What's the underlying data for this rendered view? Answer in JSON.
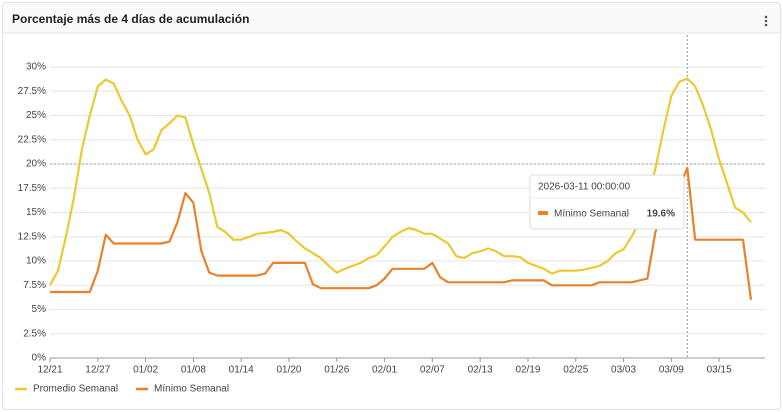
{
  "chart_data": {
    "type": "line",
    "title": "Porcentaje más de 4 días de acumulación",
    "categories": [
      "12/21",
      null,
      null,
      null,
      null,
      null,
      "12/27",
      null,
      null,
      null,
      null,
      null,
      "01/02",
      null,
      null,
      null,
      null,
      null,
      "01/08",
      null,
      null,
      null,
      null,
      null,
      "01/14",
      null,
      null,
      null,
      null,
      null,
      "01/20",
      null,
      null,
      null,
      null,
      null,
      "01/26",
      null,
      null,
      null,
      null,
      null,
      "02/01",
      null,
      null,
      null,
      null,
      null,
      "02/07",
      null,
      null,
      null,
      null,
      null,
      "02/13",
      null,
      null,
      null,
      null,
      null,
      "02/19",
      null,
      null,
      null,
      null,
      null,
      "02/25",
      null,
      null,
      null,
      null,
      null,
      "03/03",
      null,
      null,
      null,
      null,
      null,
      "03/09",
      null,
      null,
      null,
      null,
      null,
      "03/15",
      null,
      null,
      null,
      null
    ],
    "series": [
      {
        "name": "Promedio Semanal",
        "color": "#ecc931",
        "values": [
          7.5,
          9,
          12.5,
          16.5,
          21.5,
          25,
          28,
          28.7,
          28.3,
          26.5,
          25,
          22.5,
          21,
          21.5,
          23.5,
          24.2,
          25,
          24.8,
          22,
          19.5,
          17,
          13.5,
          13,
          12.2,
          12.2,
          12.5,
          12.8,
          12.9,
          13,
          13.2,
          12.8,
          12,
          11.3,
          10.8,
          10.3,
          9.5,
          8.8,
          9.2,
          9.5,
          9.8,
          10.3,
          10.6,
          11.5,
          12.5,
          13,
          13.4,
          13.2,
          12.8,
          12.8,
          12.3,
          11.8,
          10.5,
          10.3,
          10.8,
          11,
          11.3,
          11,
          10.5,
          10.5,
          10.4,
          9.8,
          9.5,
          9.2,
          8.7,
          9,
          9,
          9,
          9.1,
          9.3,
          9.5,
          10,
          10.8,
          11.2,
          12.5,
          14,
          16.5,
          19.5,
          23.5,
          27,
          28.5,
          28.8,
          28,
          26,
          23.5,
          20.5,
          18,
          15.5,
          15,
          14
        ]
      },
      {
        "name": "Mínimo Semanal",
        "color": "#e8822a",
        "values": [
          6.8,
          6.8,
          6.8,
          6.8,
          6.8,
          6.8,
          9,
          12.7,
          11.8,
          11.8,
          11.8,
          11.8,
          11.8,
          11.8,
          11.8,
          12,
          14,
          17,
          16,
          11,
          8.8,
          8.5,
          8.5,
          8.5,
          8.5,
          8.5,
          8.5,
          8.7,
          9.8,
          9.8,
          9.8,
          9.8,
          9.8,
          7.6,
          7.2,
          7.2,
          7.2,
          7.2,
          7.2,
          7.2,
          7.2,
          7.5,
          8.2,
          9.2,
          9.2,
          9.2,
          9.2,
          9.2,
          9.8,
          8.3,
          7.8,
          7.8,
          7.8,
          7.8,
          7.8,
          7.8,
          7.8,
          7.8,
          8,
          8,
          8,
          8,
          8,
          7.5,
          7.5,
          7.5,
          7.5,
          7.5,
          7.5,
          7.8,
          7.8,
          7.8,
          7.8,
          7.8,
          8,
          8.2,
          13,
          15,
          16,
          17.5,
          19.6,
          12.2,
          12.2,
          12.2,
          12.2,
          12.2,
          12.2,
          12.2,
          6
        ]
      }
    ],
    "ylim": [
      0,
      30
    ],
    "yticks": [
      {
        "value": 0,
        "label": "0%"
      },
      {
        "value": 2.5,
        "label": "2.5%"
      },
      {
        "value": 5,
        "label": "5%"
      },
      {
        "value": 7.5,
        "label": "7.5%"
      },
      {
        "value": 10,
        "label": "10%"
      },
      {
        "value": 12.5,
        "label": "12.5%"
      },
      {
        "value": 15,
        "label": "15%"
      },
      {
        "value": 17.5,
        "label": "17.5%"
      },
      {
        "value": 20,
        "label": "20%"
      },
      {
        "value": 22.5,
        "label": "22.5%"
      },
      {
        "value": 25,
        "label": "25%"
      },
      {
        "value": 27.5,
        "label": "27.5%"
      },
      {
        "value": 30,
        "label": "30%"
      }
    ],
    "grid": true,
    "legend": "bottom-left",
    "tooltip": {
      "title": "2026-03-11 00:00:00",
      "value": 19.6,
      "value_label": "19.6%"
    }
  }
}
